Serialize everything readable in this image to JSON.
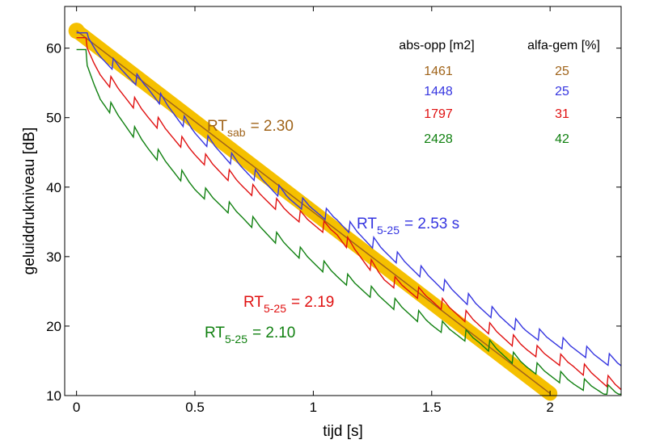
{
  "chart_data": {
    "type": "line",
    "xlabel": "tijd  [s]",
    "ylabel": "geluiddrukniveau  [dB]",
    "xlim": [
      -0.05,
      2.3
    ],
    "ylim": [
      10,
      66
    ],
    "xticks": [
      {
        "v": 0,
        "label": "0"
      },
      {
        "v": 0.5,
        "label": "0.5"
      },
      {
        "v": 1,
        "label": "1"
      },
      {
        "v": 1.5,
        "label": "1.5"
      },
      {
        "v": 2,
        "label": "2"
      }
    ],
    "yticks": [
      {
        "v": 10,
        "label": "10"
      },
      {
        "v": 20,
        "label": "20"
      },
      {
        "v": 30,
        "label": "30"
      },
      {
        "v": 40,
        "label": "40"
      },
      {
        "v": 50,
        "label": "50"
      },
      {
        "v": 60,
        "label": "60"
      }
    ],
    "regression_band": {
      "color": "#f5c000",
      "x": [
        0,
        2
      ],
      "y": [
        62.5,
        10.3
      ],
      "start_marker": true
    },
    "series": [
      {
        "key": "brown",
        "color": "#a0641a",
        "x": [
          0,
          2
        ],
        "y": [
          62.5,
          10.3
        ]
      },
      {
        "key": "blue",
        "color": "#3535e0",
        "start": 62.2,
        "end": 14.5,
        "t0": 0.05,
        "curvature": 0.9,
        "steps": 5,
        "anchor_x": [
          0.0,
          0.1,
          0.3,
          0.5,
          0.7,
          0.9,
          1.1,
          1.3,
          1.5,
          1.7,
          1.9,
          2.1,
          2.3
        ],
        "anchor_y": [
          62.2,
          59.0,
          54.5,
          48.0,
          43.0,
          38.5,
          35.5,
          31.0,
          27.0,
          23.0,
          19.5,
          17.0,
          14.5
        ]
      },
      {
        "key": "red",
        "color": "#e01010",
        "start": 61.5,
        "end": 11.2,
        "t0": 0.04,
        "curvature": 0.85,
        "steps": 5,
        "anchor_x": [
          0.0,
          0.1,
          0.3,
          0.5,
          0.7,
          0.9,
          1.1,
          1.3,
          1.5,
          1.7,
          1.9,
          2.1,
          2.3
        ],
        "anchor_y": [
          61.5,
          56.5,
          50.5,
          45.0,
          40.5,
          36.5,
          33.5,
          27.0,
          24.0,
          20.5,
          17.0,
          14.5,
          11.2
        ]
      },
      {
        "key": "green",
        "color": "#108010",
        "start": 59.8,
        "end": 10.3,
        "t0": 0.04,
        "curvature": 0.85,
        "steps": 5,
        "anchor_x": [
          0.0,
          0.1,
          0.3,
          0.5,
          0.7,
          0.9,
          1.1,
          1.3,
          1.5,
          1.7,
          1.9,
          2.1,
          2.3
        ],
        "anchor_y": [
          59.8,
          53.0,
          46.0,
          40.0,
          36.0,
          31.5,
          27.5,
          24.0,
          20.5,
          18.0,
          14.5,
          12.0,
          10.3
        ]
      }
    ],
    "table": {
      "headers": [
        "abs-opp [m2]",
        "alfa-gem [%]"
      ],
      "rows": [
        {
          "abs": "1461",
          "alfa": "25",
          "color": "#a0641a"
        },
        {
          "abs": "1448",
          "alfa": "25",
          "color": "#3535e0"
        },
        {
          "abs": "1797",
          "alfa": "31",
          "color": "#e01010"
        },
        {
          "abs": "2428",
          "alfa": "42",
          "color": "#108010"
        }
      ]
    },
    "annotations": [
      {
        "key": "sab",
        "base": "RT",
        "sub": "sab",
        "value": "=  2.30",
        "color": "#a0641a"
      },
      {
        "key": "blue",
        "base": "RT",
        "sub": "5-25",
        "value": "=  2.53 s",
        "color": "#3535e0"
      },
      {
        "key": "red",
        "base": "RT",
        "sub": "5-25",
        "value": "=  2.19",
        "color": "#e01010"
      },
      {
        "key": "green",
        "base": "RT",
        "sub": "5-25",
        "value": "=  2.10",
        "color": "#108010"
      }
    ]
  }
}
